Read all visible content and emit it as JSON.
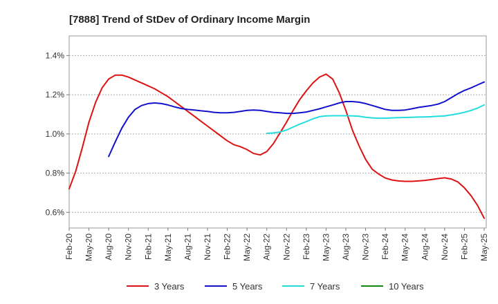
{
  "chart_data": {
    "type": "line",
    "title": "[7888]  Trend of StDev of Ordinary Income Margin",
    "xlabel": "",
    "ylabel": "",
    "x_ticks": [
      "Feb-20",
      "May-20",
      "Aug-20",
      "Nov-20",
      "Feb-21",
      "May-21",
      "Aug-21",
      "Nov-21",
      "Feb-22",
      "May-22",
      "Aug-22",
      "Nov-22",
      "Feb-23",
      "May-23",
      "Aug-23",
      "Nov-23",
      "Feb-24",
      "May-24",
      "Aug-24",
      "Nov-24",
      "Feb-25",
      "May-25"
    ],
    "y_ticks": [
      0.6,
      0.8,
      1.0,
      1.2,
      1.4
    ],
    "y_tick_labels": [
      "0.6%",
      "0.8%",
      "1.0%",
      "1.2%",
      "1.4%"
    ],
    "ylim": [
      0.52,
      1.5
    ],
    "grid": "horizontal-dashed",
    "legend_position": "bottom",
    "series": [
      {
        "name": "3 Years",
        "color": "#dd1111",
        "values": [
          0.72,
          0.81,
          0.93,
          1.06,
          1.16,
          1.235,
          1.28,
          1.3,
          1.3,
          1.29,
          1.275,
          1.26,
          1.245,
          1.23,
          1.21,
          1.19,
          1.165,
          1.14,
          1.115,
          1.09,
          1.065,
          1.04,
          1.015,
          0.99,
          0.965,
          0.945,
          0.935,
          0.92,
          0.9,
          0.893,
          0.91,
          0.95,
          1.005,
          1.06,
          1.12,
          1.175,
          1.22,
          1.26,
          1.29,
          1.305,
          1.28,
          1.21,
          1.12,
          1.02,
          0.94,
          0.87,
          0.82,
          0.795,
          0.775,
          0.765,
          0.76,
          0.758,
          0.758,
          0.76,
          0.763,
          0.767,
          0.772,
          0.776,
          0.77,
          0.755,
          0.725,
          0.685,
          0.635,
          0.57
        ]
      },
      {
        "name": "5 Years",
        "color": "#1111cc",
        "start_index": 6,
        "values": [
          0.885,
          0.96,
          1.03,
          1.085,
          1.125,
          1.145,
          1.155,
          1.158,
          1.155,
          1.148,
          1.138,
          1.13,
          1.125,
          1.122,
          1.118,
          1.115,
          1.11,
          1.108,
          1.108,
          1.11,
          1.115,
          1.12,
          1.122,
          1.12,
          1.115,
          1.11,
          1.108,
          1.105,
          1.105,
          1.108,
          1.112,
          1.12,
          1.128,
          1.138,
          1.148,
          1.158,
          1.165,
          1.165,
          1.162,
          1.155,
          1.145,
          1.135,
          1.125,
          1.12,
          1.12,
          1.122,
          1.128,
          1.135,
          1.14,
          1.145,
          1.152,
          1.165,
          1.185,
          1.205,
          1.222,
          1.235,
          1.25,
          1.265
        ]
      },
      {
        "name": "7 Years",
        "color": "#22dddd",
        "start_index": 30,
        "values": [
          1.003,
          1.005,
          1.01,
          1.02,
          1.035,
          1.05,
          1.063,
          1.077,
          1.088,
          1.092,
          1.093,
          1.093,
          1.093,
          1.092,
          1.09,
          1.085,
          1.082,
          1.08,
          1.08,
          1.082,
          1.083,
          1.084,
          1.085,
          1.086,
          1.087,
          1.088,
          1.09,
          1.092,
          1.097,
          1.103,
          1.11,
          1.12,
          1.132,
          1.148
        ]
      },
      {
        "name": "10 Years",
        "color": "#118811",
        "values": []
      }
    ]
  }
}
